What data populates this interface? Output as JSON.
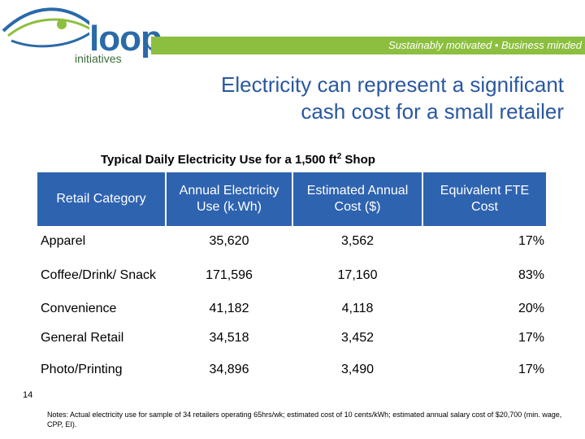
{
  "header": {
    "logo_word": "loop",
    "logo_sub": "initiatives",
    "tagline": "Sustainably motivated • Business minded",
    "colors": {
      "brand_blue": "#2a6aa8",
      "brand_green": "#8cbf3f",
      "table_header": "#2e63b0",
      "title": "#2a58a0"
    }
  },
  "slide": {
    "title": "Electricity can represent a significant cash cost for a small retailer",
    "subtitle_main": "Typical Daily Electricity Use for a 1,500 ft",
    "subtitle_sup": "2",
    "subtitle_end": " Shop",
    "page_number": "14",
    "notes": "Notes: Actual electricity use for sample of 34 retailers operating 65hrs/wk; estimated cost of 10 cents/kWh; estimated annual salary cost of $20,700 (min. wage, CPP, EI)."
  },
  "table": {
    "headers": [
      "Retail Category",
      "Annual Electricity Use (k.Wh)",
      "Estimated Annual  Cost ($)",
      "Equivalent FTE Cost"
    ],
    "rows": [
      [
        "Apparel",
        "35,620",
        "3,562",
        "17%"
      ],
      [
        "Coffee/Drink/ Snack",
        "171,596",
        "17,160",
        "83%"
      ],
      [
        "Convenience",
        "41,182",
        "4,118",
        "20%"
      ],
      [
        "General Retail",
        "34,518",
        "3,452",
        "17%"
      ],
      [
        "Photo/Printing",
        "34,896",
        "3,490",
        "17%"
      ]
    ]
  }
}
